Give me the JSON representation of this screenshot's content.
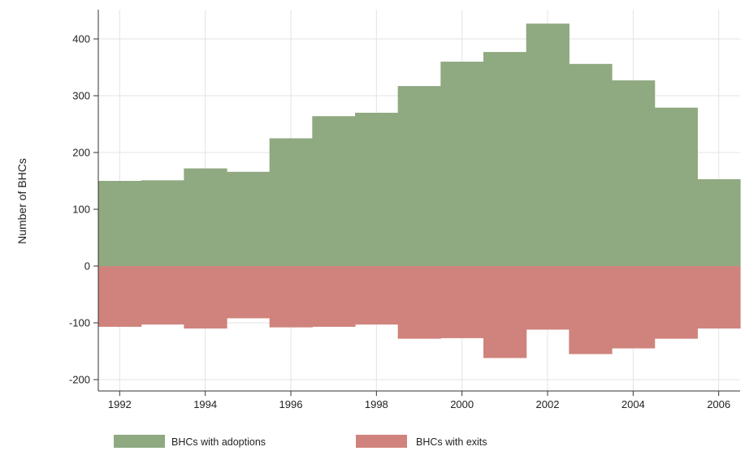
{
  "chart_data": {
    "type": "bar",
    "x": [
      1992,
      1993,
      1994,
      1995,
      1996,
      1997,
      1998,
      1999,
      2000,
      2001,
      2002,
      2003,
      2004,
      2005,
      2006
    ],
    "series": [
      {
        "name": "BHCs with adoptions",
        "color": "#8fa981",
        "values": [
          150,
          151,
          172,
          166,
          225,
          264,
          270,
          317,
          360,
          377,
          427,
          356,
          327,
          279,
          153
        ]
      },
      {
        "name": "BHCs with exits",
        "color": "#d0837d",
        "values": [
          -107,
          -103,
          -110,
          -92,
          -108,
          -107,
          -103,
          -128,
          -127,
          -162,
          -112,
          -155,
          -145,
          -128,
          -110
        ]
      }
    ],
    "xlabel": "",
    "ylabel": "Number of BHCs",
    "ylim": [
      -210,
      430
    ],
    "xlim": [
      1991.5,
      2006.5
    ],
    "xticks": [
      1992,
      1994,
      1996,
      1998,
      2000,
      2002,
      2004,
      2006
    ],
    "yticks": [
      -200,
      -100,
      0,
      100,
      200,
      300,
      400
    ],
    "grid": true,
    "legend": "bottom"
  }
}
